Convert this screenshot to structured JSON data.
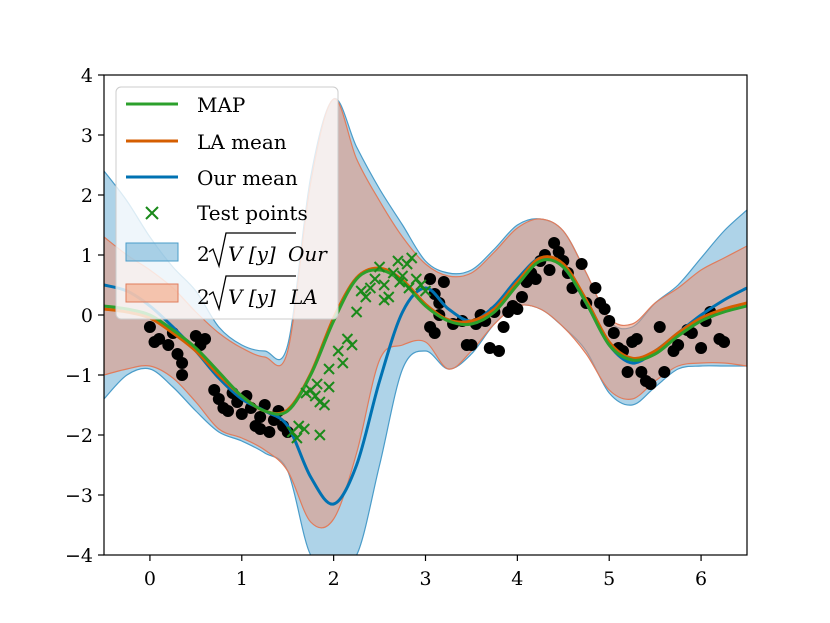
{
  "chart_data": {
    "type": "line",
    "xlim": [
      -0.5,
      6.5
    ],
    "ylim": [
      -4,
      4
    ],
    "x_ticks": [
      0,
      1,
      2,
      3,
      4,
      5,
      6
    ],
    "y_ticks": [
      -4,
      -3,
      -2,
      -1,
      0,
      1,
      2,
      3,
      4
    ],
    "x_tick_labels": [
      "0",
      "1",
      "2",
      "3",
      "4",
      "5",
      "6"
    ],
    "y_tick_labels": [
      "−4",
      "−3",
      "−2",
      "−1",
      "0",
      "1",
      "2",
      "3",
      "4"
    ],
    "grid": false,
    "legend": {
      "position": "top-left",
      "entries": [
        {
          "label": "MAP",
          "kind": "line",
          "color": "#2ca02c"
        },
        {
          "label": "LA mean",
          "kind": "line",
          "color": "#d55e00"
        },
        {
          "label": "Our mean",
          "kind": "line",
          "color": "#0072b2"
        },
        {
          "label": "Test points",
          "kind": "marker",
          "color": "#1a8a1a"
        },
        {
          "label_prefix": "2",
          "label_radicand": "V [y]",
          "label_suffix": "Our",
          "kind": "patch",
          "color": "#6baed6"
        },
        {
          "label_prefix": "2",
          "label_radicand": "V [y]",
          "label_suffix": "LA",
          "kind": "patch",
          "color": "#f4a582"
        }
      ]
    },
    "colors": {
      "map": "#2ca02c",
      "la_mean": "#d55e00",
      "our_mean": "#0072b2",
      "test_points": "#1a8a1a",
      "train_points": "#000000",
      "our_band_fill": "#6baed6",
      "our_band_stroke": "#4a9cc9",
      "la_band_fill": "#e9957a",
      "la_band_stroke": "#e07c5c"
    },
    "x": [
      -0.5,
      -0.25,
      0.0,
      0.25,
      0.5,
      0.75,
      1.0,
      1.25,
      1.5,
      1.75,
      2.0,
      2.25,
      2.5,
      2.75,
      3.0,
      3.25,
      3.5,
      3.75,
      4.0,
      4.25,
      4.5,
      4.75,
      5.0,
      5.25,
      5.5,
      5.75,
      6.0,
      6.25,
      6.5
    ],
    "series": [
      {
        "name": "MAP",
        "values": [
          0.15,
          0.1,
          0.0,
          -0.25,
          -0.55,
          -0.95,
          -1.35,
          -1.6,
          -1.6,
          -1.0,
          -0.1,
          0.6,
          0.75,
          0.55,
          0.15,
          -0.1,
          -0.15,
          0.05,
          0.5,
          0.9,
          0.8,
          0.2,
          -0.5,
          -0.75,
          -0.65,
          -0.35,
          -0.1,
          0.05,
          0.15
        ]
      },
      {
        "name": "LA mean",
        "values": [
          0.1,
          0.05,
          -0.05,
          -0.3,
          -0.6,
          -1.0,
          -1.35,
          -1.6,
          -1.58,
          -0.98,
          -0.05,
          0.62,
          0.78,
          0.58,
          0.18,
          -0.08,
          -0.1,
          0.1,
          0.55,
          0.95,
          0.85,
          0.25,
          -0.45,
          -0.72,
          -0.6,
          -0.3,
          -0.05,
          0.1,
          0.2
        ]
      },
      {
        "name": "Our mean",
        "values": [
          0.5,
          0.4,
          0.15,
          -0.2,
          -0.6,
          -1.05,
          -1.4,
          -1.6,
          -1.85,
          -2.7,
          -3.15,
          -2.5,
          -1.1,
          0.05,
          0.45,
          0.1,
          -0.1,
          0.15,
          0.6,
          0.95,
          0.8,
          0.2,
          -0.5,
          -0.8,
          -0.6,
          -0.3,
          0.0,
          0.25,
          0.45
        ]
      }
    ],
    "our_band_upper": [
      2.4,
      1.9,
      1.3,
      0.8,
      0.4,
      -0.2,
      -0.5,
      -0.6,
      -0.5,
      2.3,
      3.6,
      2.8,
      2.1,
      1.5,
      0.9,
      0.7,
      0.75,
      1.1,
      1.5,
      1.6,
      1.4,
      0.7,
      -0.1,
      -0.2,
      0.2,
      0.5,
      0.95,
      1.4,
      1.75
    ],
    "our_band_lower": [
      -1.4,
      -1.0,
      -0.9,
      -1.2,
      -1.6,
      -1.95,
      -2.1,
      -2.3,
      -2.6,
      -4.0,
      -4.0,
      -4.0,
      -2.5,
      -0.9,
      -0.6,
      -0.9,
      -0.65,
      -0.15,
      0.15,
      0.1,
      -0.2,
      -0.6,
      -1.3,
      -1.5,
      -1.2,
      -0.9,
      -0.85,
      -0.85,
      -0.85
    ],
    "la_band_upper": [
      1.3,
      1.0,
      0.75,
      0.45,
      0.05,
      -0.3,
      -0.55,
      -0.7,
      -0.6,
      2.2,
      3.6,
      2.6,
      1.9,
      1.3,
      0.85,
      0.65,
      0.7,
      1.05,
      1.45,
      1.6,
      1.4,
      0.7,
      -0.05,
      -0.15,
      0.2,
      0.45,
      0.75,
      0.95,
      1.15
    ],
    "la_band_lower": [
      -1.0,
      -0.9,
      -0.85,
      -1.05,
      -1.45,
      -1.9,
      -2.05,
      -2.25,
      -2.6,
      -3.45,
      -3.4,
      -2.3,
      -0.75,
      -0.5,
      -0.45,
      -0.9,
      -0.6,
      -0.15,
      0.15,
      0.1,
      -0.2,
      -0.65,
      -1.25,
      -1.4,
      -1.1,
      -0.85,
      -0.8,
      -0.8,
      -0.85
    ],
    "train_points": [
      [
        0.0,
        -0.2
      ],
      [
        0.05,
        -0.45
      ],
      [
        0.1,
        -0.4
      ],
      [
        0.2,
        -0.5
      ],
      [
        0.25,
        -0.3
      ],
      [
        0.3,
        -0.65
      ],
      [
        0.35,
        -0.8
      ],
      [
        0.35,
        -1.0
      ],
      [
        0.5,
        -0.35
      ],
      [
        0.55,
        -0.5
      ],
      [
        0.6,
        -0.4
      ],
      [
        0.7,
        -1.25
      ],
      [
        0.75,
        -1.4
      ],
      [
        0.8,
        -1.55
      ],
      [
        0.85,
        -1.6
      ],
      [
        0.9,
        -1.3
      ],
      [
        0.95,
        -1.45
      ],
      [
        1.0,
        -1.65
      ],
      [
        1.05,
        -1.35
      ],
      [
        1.1,
        -1.55
      ],
      [
        1.15,
        -1.85
      ],
      [
        1.2,
        -1.9
      ],
      [
        1.2,
        -1.7
      ],
      [
        1.25,
        -1.5
      ],
      [
        1.3,
        -1.95
      ],
      [
        1.35,
        -1.75
      ],
      [
        1.4,
        -1.6
      ],
      [
        1.45,
        -1.85
      ],
      [
        1.5,
        -1.95
      ],
      [
        3.05,
        0.6
      ],
      [
        3.1,
        0.35
      ],
      [
        3.15,
        0.2
      ],
      [
        3.2,
        0.55
      ],
      [
        3.05,
        -0.2
      ],
      [
        3.1,
        -0.3
      ],
      [
        3.15,
        0.0
      ],
      [
        3.3,
        -0.15
      ],
      [
        3.4,
        -0.1
      ],
      [
        3.45,
        -0.5
      ],
      [
        3.5,
        -0.5
      ],
      [
        3.55,
        -0.15
      ],
      [
        3.6,
        0.0
      ],
      [
        3.65,
        -0.1
      ],
      [
        3.7,
        -0.55
      ],
      [
        3.75,
        0.05
      ],
      [
        3.8,
        -0.6
      ],
      [
        3.85,
        -0.2
      ],
      [
        3.9,
        0.05
      ],
      [
        3.95,
        0.15
      ],
      [
        4.0,
        0.1
      ],
      [
        4.05,
        0.3
      ],
      [
        4.1,
        0.55
      ],
      [
        4.15,
        0.7
      ],
      [
        4.2,
        0.6
      ],
      [
        4.25,
        0.9
      ],
      [
        4.3,
        1.0
      ],
      [
        4.35,
        0.75
      ],
      [
        4.4,
        1.2
      ],
      [
        4.45,
        1.05
      ],
      [
        4.5,
        0.9
      ],
      [
        4.55,
        0.7
      ],
      [
        4.6,
        0.45
      ],
      [
        4.7,
        0.85
      ],
      [
        4.75,
        0.2
      ],
      [
        4.85,
        0.45
      ],
      [
        4.9,
        0.2
      ],
      [
        4.95,
        0.1
      ],
      [
        5.0,
        -0.1
      ],
      [
        5.05,
        -0.3
      ],
      [
        5.1,
        -0.55
      ],
      [
        5.15,
        -0.6
      ],
      [
        5.2,
        -0.95
      ],
      [
        5.25,
        -0.45
      ],
      [
        5.3,
        -0.4
      ],
      [
        5.35,
        -0.95
      ],
      [
        5.4,
        -1.1
      ],
      [
        5.45,
        -1.15
      ],
      [
        5.55,
        -0.2
      ],
      [
        5.6,
        -0.95
      ],
      [
        5.7,
        -0.6
      ],
      [
        5.75,
        -0.5
      ],
      [
        5.85,
        -0.25
      ],
      [
        5.9,
        -0.3
      ],
      [
        6.0,
        -0.55
      ],
      [
        6.05,
        -0.1
      ],
      [
        6.1,
        0.05
      ],
      [
        6.2,
        -0.4
      ],
      [
        6.25,
        -0.45
      ]
    ],
    "test_points": [
      [
        1.55,
        -1.95
      ],
      [
        1.6,
        -2.05
      ],
      [
        1.62,
        -1.85
      ],
      [
        1.68,
        -1.9
      ],
      [
        1.7,
        -1.3
      ],
      [
        1.75,
        -1.25
      ],
      [
        1.8,
        -1.35
      ],
      [
        1.82,
        -1.15
      ],
      [
        1.85,
        -1.45
      ],
      [
        1.9,
        -1.5
      ],
      [
        1.95,
        -1.2
      ],
      [
        1.95,
        -0.9
      ],
      [
        2.05,
        -0.6
      ],
      [
        2.1,
        -0.8
      ],
      [
        2.15,
        -0.4
      ],
      [
        2.2,
        -0.5
      ],
      [
        2.25,
        0.05
      ],
      [
        2.3,
        0.4
      ],
      [
        2.35,
        0.3
      ],
      [
        2.4,
        0.45
      ],
      [
        2.45,
        0.6
      ],
      [
        2.5,
        0.8
      ],
      [
        2.55,
        0.5
      ],
      [
        2.6,
        0.3
      ],
      [
        2.65,
        0.7
      ],
      [
        2.7,
        0.9
      ],
      [
        2.72,
        0.55
      ],
      [
        2.75,
        0.65
      ],
      [
        2.8,
        0.85
      ],
      [
        2.82,
        0.45
      ],
      [
        2.85,
        0.95
      ],
      [
        2.9,
        0.6
      ],
      [
        2.95,
        0.5
      ],
      [
        3.0,
        0.4
      ],
      [
        1.85,
        -2.0
      ],
      [
        2.55,
        0.25
      ]
    ]
  }
}
